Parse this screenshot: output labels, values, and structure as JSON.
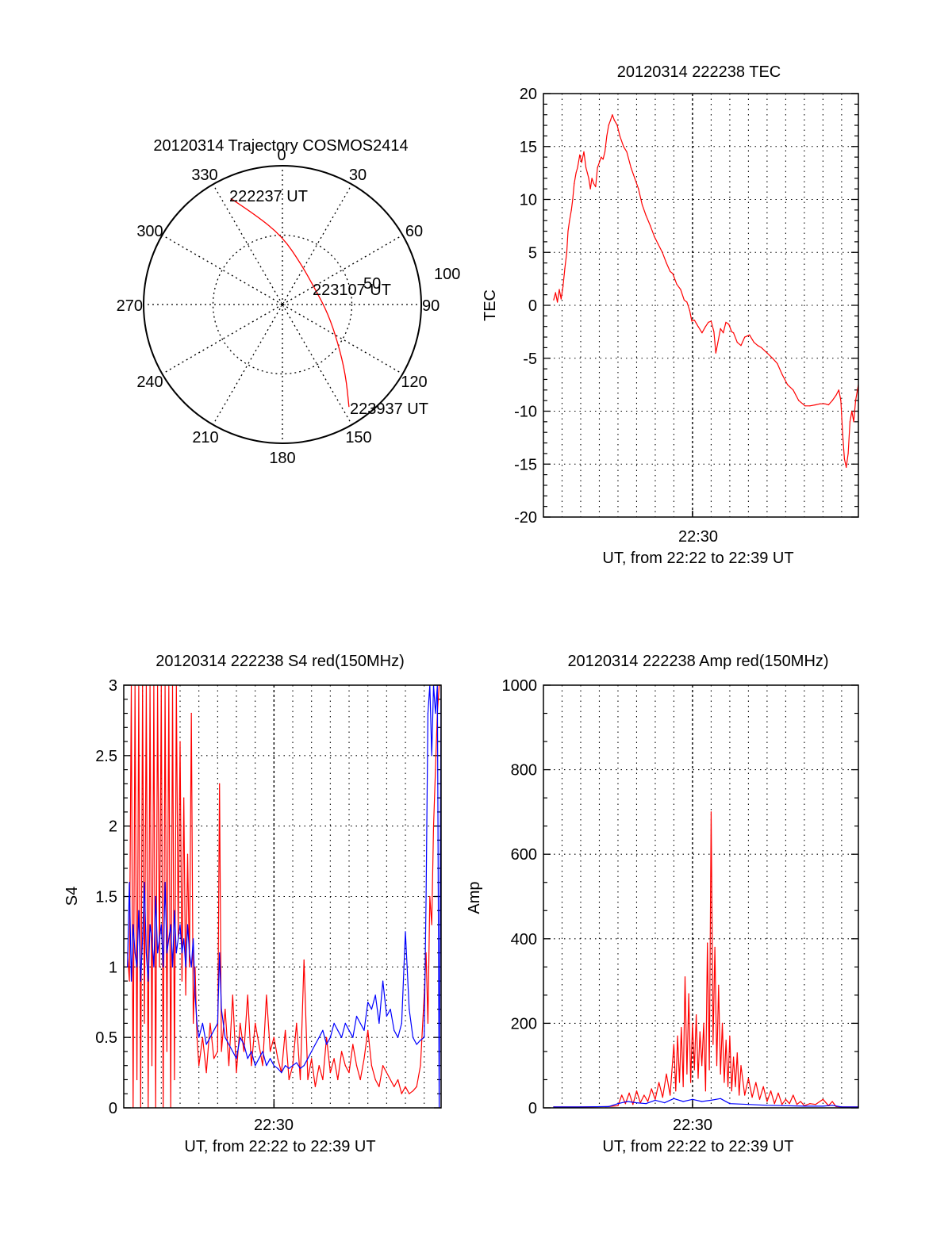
{
  "chart_data": [
    {
      "type": "polar",
      "title": "20120314 Trajectory COSMOS2414",
      "angle_labels": [
        "0",
        "30",
        "60",
        "90",
        "120",
        "150",
        "180",
        "210",
        "240",
        "270",
        "300",
        "330"
      ],
      "radial_labels": [
        "50",
        "100"
      ],
      "rlim": [
        0,
        100
      ],
      "grid": true,
      "series": [
        {
          "name": "trajectory",
          "color": "#ff0000",
          "points": [
            {
              "az": 334,
              "r": 85
            },
            {
              "az": 343,
              "r": 68
            },
            {
              "az": 0,
              "r": 49
            },
            {
              "az": 25,
              "r": 32
            },
            {
              "az": 62,
              "r": 26
            },
            {
              "az": 100,
              "r": 33
            },
            {
              "az": 125,
              "r": 49
            },
            {
              "az": 138,
              "r": 68
            },
            {
              "az": 147,
              "r": 88
            }
          ]
        }
      ],
      "annotations": [
        "222237 UT",
        "223107 UT",
        "223937 UT"
      ]
    },
    {
      "type": "line",
      "title": "20120314 222238 TEC",
      "xlabel_tick": "22:30",
      "xlabel": "UT, from 22:22 to 22:39 UT",
      "ylabel": "TEC",
      "xlim_minutes": [
        0,
        16.9
      ],
      "ylim": [
        -20,
        20
      ],
      "yticks": [
        "20",
        "15",
        "10",
        "5",
        "0",
        "-5",
        "-10",
        "-15",
        "-20"
      ],
      "grid": true,
      "series": [
        {
          "name": "TEC",
          "color": "#ff0000",
          "x": [
            0.55,
            0.65,
            0.75,
            0.85,
            0.95,
            1.05,
            1.15,
            1.25,
            1.32,
            1.4,
            1.5,
            1.57,
            1.65,
            1.75,
            1.83,
            1.95,
            2.05,
            2.17,
            2.28,
            2.36,
            2.43,
            2.52,
            2.6,
            2.7,
            2.8,
            2.9,
            3.0,
            3.1,
            3.2,
            3.3,
            3.4,
            3.5,
            3.6,
            3.7,
            3.8,
            3.9,
            3.96,
            4.1,
            4.3,
            4.47,
            4.7,
            4.9,
            5.1,
            5.3,
            5.5,
            5.74,
            5.95,
            6.15,
            6.38,
            6.6,
            6.8,
            6.94,
            7.15,
            7.36,
            7.55,
            7.7,
            7.85,
            7.96,
            8.1,
            8.3,
            8.51,
            8.7,
            8.85,
            9.0,
            9.15,
            9.25,
            9.36,
            9.5,
            9.65,
            9.79,
            9.95,
            10.1,
            10.2,
            10.4,
            10.6,
            10.8,
            11.06,
            11.3,
            11.5,
            11.7,
            12.0,
            12.3,
            12.55,
            12.8,
            13.1,
            13.4,
            13.7,
            14.04,
            14.3,
            14.6,
            14.85,
            15.1,
            15.3,
            15.5,
            15.7,
            15.85,
            15.96,
            16.05,
            16.15,
            16.25,
            16.35,
            16.45,
            16.55,
            16.65,
            16.75,
            16.85,
            16.9
          ],
          "y": [
            0.5,
            1.2,
            0.3,
            1.5,
            0.6,
            1.8,
            3.5,
            5.0,
            7.0,
            8.0,
            9.0,
            10.0,
            11.5,
            12.5,
            13.0,
            14.2,
            13.5,
            14.5,
            13.0,
            12.5,
            12.0,
            11.0,
            12.0,
            11.5,
            11.2,
            13.0,
            13.5,
            14.0,
            13.8,
            14.5,
            16.0,
            17.0,
            17.5,
            18.0,
            17.5,
            17.2,
            17.0,
            16.0,
            15.0,
            14.5,
            13.0,
            12.0,
            11.0,
            9.5,
            8.5,
            7.5,
            6.5,
            5.8,
            5.0,
            4.0,
            3.2,
            3.0,
            2.0,
            1.5,
            0.5,
            0.3,
            -0.5,
            -1.5,
            -1.4,
            -2.0,
            -2.6,
            -2.0,
            -1.6,
            -1.5,
            -2.5,
            -4.5,
            -3.5,
            -2.2,
            -2.6,
            -1.6,
            -1.8,
            -2.5,
            -2.6,
            -3.5,
            -3.8,
            -3.0,
            -2.8,
            -3.5,
            -3.8,
            -4.0,
            -4.5,
            -5.0,
            -5.5,
            -6.5,
            -7.5,
            -8.0,
            -9.0,
            -9.5,
            -9.5,
            -9.4,
            -9.3,
            -9.3,
            -9.4,
            -9.0,
            -8.5,
            -8.0,
            -9.0,
            -12.0,
            -14.5,
            -15.3,
            -14.0,
            -11.0,
            -10.0,
            -11.0,
            -9.0,
            -8.0,
            -7.5
          ]
        }
      ]
    },
    {
      "type": "line",
      "title": "20120314 222238 S4 red(150MHz)",
      "xlabel_tick": "22:30",
      "xlabel": "UT, from 22:22 to 22:39 UT",
      "ylabel": "S4",
      "xlim_minutes": [
        0,
        16.9
      ],
      "ylim": [
        0,
        3
      ],
      "yticks": [
        "3",
        "2.5",
        "2",
        "1.5",
        "1",
        "0.5",
        "0"
      ],
      "grid": true,
      "series": [
        {
          "name": "S4 red",
          "color": "#ff0000",
          "x": [
            0.2,
            0.3,
            0.4,
            0.5,
            0.6,
            0.7,
            0.8,
            0.9,
            1.0,
            1.1,
            1.2,
            1.3,
            1.4,
            1.5,
            1.6,
            1.7,
            1.8,
            1.9,
            2.0,
            2.1,
            2.2,
            2.3,
            2.4,
            2.5,
            2.6,
            2.7,
            2.8,
            2.9,
            3.0,
            3.1,
            3.2,
            3.3,
            3.4,
            3.5,
            3.6,
            3.7,
            3.8,
            3.9,
            4.0,
            4.2,
            4.4,
            4.6,
            4.8,
            5.0,
            5.1,
            5.2,
            5.4,
            5.6,
            5.8,
            6.0,
            6.2,
            6.4,
            6.6,
            6.8,
            7.0,
            7.2,
            7.4,
            7.6,
            7.8,
            8.0,
            8.2,
            8.4,
            8.6,
            8.8,
            9.0,
            9.2,
            9.4,
            9.6,
            9.8,
            10.0,
            10.2,
            10.4,
            10.6,
            10.8,
            11.0,
            11.2,
            11.4,
            11.6,
            11.8,
            12.0,
            12.2,
            12.4,
            12.6,
            12.8,
            13.0,
            13.2,
            13.4,
            13.6,
            13.8,
            14.0,
            14.2,
            14.4,
            14.6,
            14.8,
            15.0,
            15.2,
            15.4,
            15.6,
            15.8,
            16.0,
            16.1,
            16.2,
            16.3,
            16.4,
            16.5,
            16.6,
            16.7,
            16.8,
            16.9
          ],
          "y": [
            1.1,
            0.9,
            3.0,
            0.0,
            3.0,
            0.2,
            3.0,
            0.0,
            3.0,
            0.6,
            3.0,
            0.0,
            3.0,
            0.3,
            3.0,
            0.0,
            3.0,
            1.0,
            3.0,
            0.0,
            3.0,
            0.4,
            3.0,
            0.0,
            3.0,
            0.2,
            3.0,
            1.2,
            2.6,
            0.9,
            2.2,
            0.8,
            1.8,
            1.0,
            2.8,
            0.6,
            1.0,
            0.5,
            0.3,
            0.5,
            0.25,
            0.6,
            0.35,
            0.4,
            2.3,
            0.4,
            0.7,
            0.3,
            0.8,
            0.25,
            0.6,
            0.4,
            0.8,
            0.3,
            0.6,
            0.45,
            0.3,
            0.8,
            0.4,
            0.5,
            0.35,
            0.25,
            0.55,
            0.2,
            0.3,
            0.6,
            0.2,
            1.05,
            0.2,
            0.35,
            0.15,
            0.3,
            0.2,
            0.5,
            0.25,
            0.35,
            0.2,
            0.4,
            0.3,
            0.25,
            0.45,
            0.3,
            0.2,
            0.35,
            0.55,
            0.3,
            0.2,
            0.15,
            0.3,
            0.25,
            0.2,
            0.15,
            0.2,
            0.1,
            0.15,
            0.1,
            0.12,
            0.15,
            0.3,
            0.8,
            1.1,
            0.6,
            1.5,
            1.3,
            2.0,
            2.4,
            2.8,
            3.0,
            3.0
          ]
        },
        {
          "name": "S4 blue",
          "color": "#0000ff",
          "x": [
            0.2,
            0.3,
            0.4,
            0.5,
            0.6,
            0.7,
            0.8,
            0.9,
            1.0,
            1.1,
            1.2,
            1.3,
            1.4,
            1.5,
            1.6,
            1.7,
            1.8,
            1.9,
            2.0,
            2.1,
            2.2,
            2.3,
            2.4,
            2.5,
            2.6,
            2.7,
            2.8,
            2.9,
            3.0,
            3.1,
            3.2,
            3.3,
            3.4,
            3.5,
            3.6,
            3.7,
            3.8,
            3.9,
            4.0,
            4.2,
            4.4,
            4.6,
            4.8,
            5.0,
            5.1,
            5.2,
            5.4,
            5.6,
            5.8,
            6.0,
            6.2,
            6.4,
            6.6,
            6.8,
            7.0,
            7.2,
            7.4,
            7.6,
            7.8,
            8.0,
            8.2,
            8.4,
            8.6,
            8.8,
            9.0,
            9.2,
            9.4,
            9.6,
            9.8,
            10.0,
            10.2,
            10.4,
            10.6,
            10.8,
            11.0,
            11.2,
            11.4,
            11.6,
            11.8,
            12.0,
            12.2,
            12.4,
            12.6,
            12.8,
            13.0,
            13.2,
            13.4,
            13.6,
            13.8,
            14.0,
            14.2,
            14.4,
            14.6,
            14.8,
            15.0,
            15.2,
            15.4,
            15.6,
            15.8,
            16.0,
            16.1,
            16.2,
            16.3,
            16.4,
            16.5,
            16.6,
            16.7,
            16.8,
            16.9
          ],
          "y": [
            1.0,
            1.6,
            0.9,
            1.3,
            1.1,
            1.0,
            1.4,
            0.9,
            1.2,
            1.6,
            1.1,
            0.9,
            1.3,
            1.2,
            1.0,
            1.5,
            1.1,
            1.2,
            1.3,
            1.0,
            1.6,
            1.1,
            1.2,
            1.3,
            1.0,
            1.4,
            1.1,
            1.2,
            1.3,
            1.1,
            1.2,
            1.0,
            1.3,
            1.1,
            1.0,
            1.2,
            0.8,
            0.6,
            0.5,
            0.6,
            0.45,
            0.5,
            0.55,
            0.6,
            1.1,
            0.7,
            0.5,
            0.45,
            0.4,
            0.35,
            0.5,
            0.45,
            0.35,
            0.4,
            0.3,
            0.35,
            0.4,
            0.3,
            0.35,
            0.3,
            0.28,
            0.25,
            0.3,
            0.28,
            0.3,
            0.32,
            0.28,
            0.3,
            0.35,
            0.4,
            0.45,
            0.5,
            0.55,
            0.45,
            0.5,
            0.6,
            0.55,
            0.5,
            0.6,
            0.55,
            0.5,
            0.65,
            0.6,
            0.55,
            0.75,
            0.7,
            0.8,
            0.6,
            0.9,
            0.65,
            0.7,
            0.55,
            0.5,
            0.6,
            1.25,
            0.7,
            0.5,
            0.45,
            0.48,
            0.5,
            1.5,
            2.8,
            3.0,
            2.5,
            3.0,
            2.8,
            3.0,
            0.0,
            3.0
          ]
        }
      ]
    },
    {
      "type": "line",
      "title": "20120314 222238 Amp red(150MHz)",
      "xlabel_tick": "22:30",
      "xlabel": "UT, from 22:22 to 22:39 UT",
      "ylabel": "Amp",
      "xlim_minutes": [
        0,
        16.9
      ],
      "ylim": [
        0,
        1000
      ],
      "yticks": [
        "1000",
        "800",
        "600",
        "400",
        "200",
        "0"
      ],
      "grid": true,
      "series": [
        {
          "name": "Amp red",
          "color": "#ff0000",
          "x": [
            0.55,
            2.0,
            3.5,
            4.0,
            4.2,
            4.4,
            4.6,
            4.8,
            5.0,
            5.2,
            5.4,
            5.6,
            5.8,
            6.0,
            6.2,
            6.4,
            6.6,
            6.8,
            7.0,
            7.1,
            7.2,
            7.3,
            7.4,
            7.5,
            7.6,
            7.7,
            7.8,
            7.9,
            8.0,
            8.1,
            8.2,
            8.3,
            8.4,
            8.5,
            8.6,
            8.7,
            8.8,
            8.9,
            9.0,
            9.1,
            9.2,
            9.3,
            9.4,
            9.5,
            9.6,
            9.7,
            9.8,
            9.9,
            10.0,
            10.1,
            10.2,
            10.3,
            10.4,
            10.5,
            10.6,
            10.8,
            11.0,
            11.2,
            11.4,
            11.6,
            11.8,
            12.0,
            12.2,
            12.4,
            12.6,
            12.8,
            13.0,
            13.2,
            13.4,
            13.6,
            13.8,
            14.0,
            14.3,
            14.6,
            15.0,
            15.3,
            15.5,
            15.7,
            16.0,
            16.9
          ],
          "y": [
            2,
            2,
            3,
            5,
            30,
            10,
            35,
            8,
            40,
            12,
            30,
            15,
            45,
            20,
            60,
            25,
            80,
            30,
            150,
            40,
            170,
            60,
            190,
            50,
            310,
            80,
            270,
            60,
            200,
            90,
            220,
            70,
            180,
            100,
            200,
            40,
            390,
            90,
            700,
            150,
            380,
            100,
            290,
            80,
            200,
            60,
            160,
            50,
            170,
            40,
            120,
            50,
            130,
            30,
            100,
            30,
            70,
            25,
            60,
            20,
            50,
            15,
            40,
            10,
            35,
            8,
            20,
            10,
            30,
            8,
            15,
            5,
            10,
            8,
            20,
            5,
            15,
            3,
            2,
            2
          ]
        },
        {
          "name": "Amp blue",
          "color": "#0000ff",
          "x": [
            0.55,
            2.0,
            3.5,
            4.0,
            4.5,
            5.0,
            5.5,
            6.0,
            6.5,
            7.0,
            7.5,
            8.0,
            8.5,
            9.0,
            9.5,
            10.0,
            11.0,
            12.0,
            13.0,
            14.0,
            15.0,
            15.5,
            16.0,
            16.9
          ],
          "y": [
            2,
            2,
            3,
            10,
            15,
            12,
            10,
            18,
            12,
            22,
            15,
            20,
            15,
            18,
            22,
            10,
            8,
            6,
            5,
            4,
            4,
            6,
            2,
            2
          ]
        }
      ]
    }
  ]
}
